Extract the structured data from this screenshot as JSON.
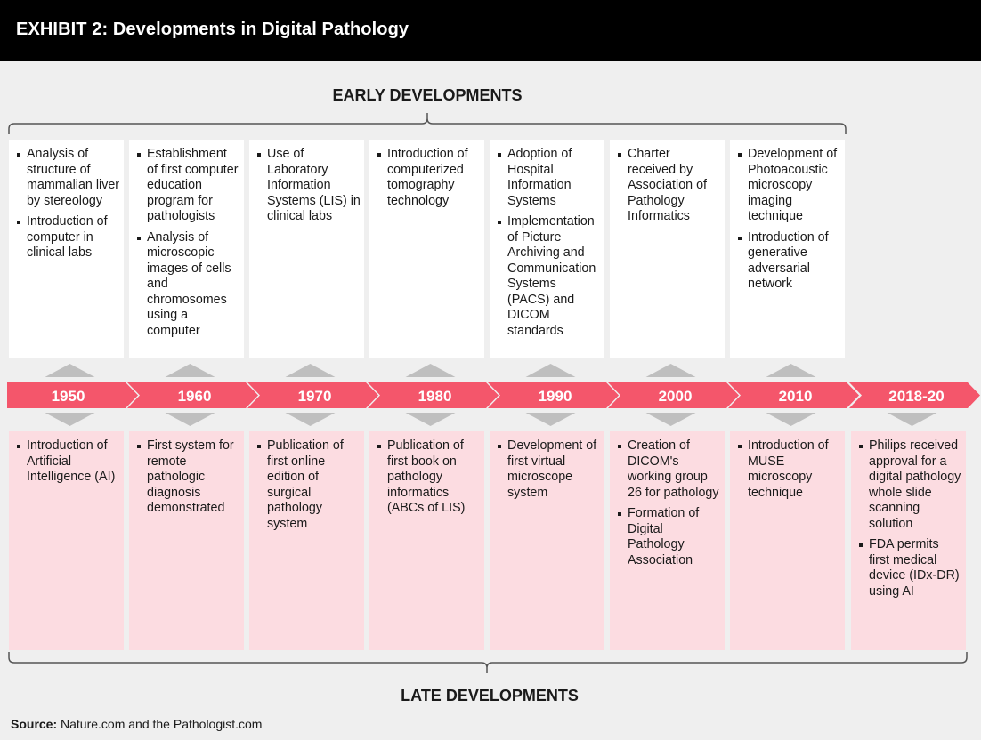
{
  "header": {
    "title": "EXHIBIT 2: Developments in Digital Pathology"
  },
  "early_label": "EARLY DEVELOPMENTS",
  "late_label": "LATE DEVELOPMENTS",
  "years": [
    "1950",
    "1960",
    "1970",
    "1980",
    "1990",
    "2000",
    "2010",
    "2018-20"
  ],
  "early": [
    [
      "Analysis of structure of mammalian liver by stereology",
      "Introduction of computer in clinical labs"
    ],
    [
      "Establishment of first computer education program for pathologists",
      "Analysis of microscopic images of cells and chromosomes using a computer"
    ],
    [
      "Use of Laboratory Information Systems (LIS) in clinical labs"
    ],
    [
      "Introduction of computerized tomography technology"
    ],
    [
      "Adoption of Hospital Information Systems",
      "Implementation of Picture Archiving and Communication Systems (PACS) and DICOM standards"
    ],
    [
      "Charter received by Association of Pathology Informatics"
    ],
    [
      "Development of Photoacoustic microscopy imaging technique",
      "Introduction of generative adversarial network"
    ]
  ],
  "late": [
    [
      "Introduction of Artificial Intelligence (AI)"
    ],
    [
      "First system for remote pathologic diagnosis demonstrated"
    ],
    [
      "Publication of first online edition of surgical pathology system"
    ],
    [
      "Publication of first book on pathology informatics (ABCs of LIS)"
    ],
    [
      "Development of first virtual microscope system"
    ],
    [
      "Creation of DICOM's working group 26 for pathology",
      "Formation of Digital Pathology Association"
    ],
    [
      "Introduction of MUSE microscopy technique"
    ],
    [
      "Philips received approval for a digital pathology whole slide scanning solution",
      "FDA permits first medical device (IDx-DR) using AI"
    ]
  ],
  "source": {
    "label": "Source:",
    "text": " Nature.com and the Pathologist.com"
  },
  "colors": {
    "timeline": "#f4566b",
    "early_card": "#ffffff",
    "late_card": "#fcdce1",
    "connector": "#bfbfbf",
    "header": "#000000"
  }
}
